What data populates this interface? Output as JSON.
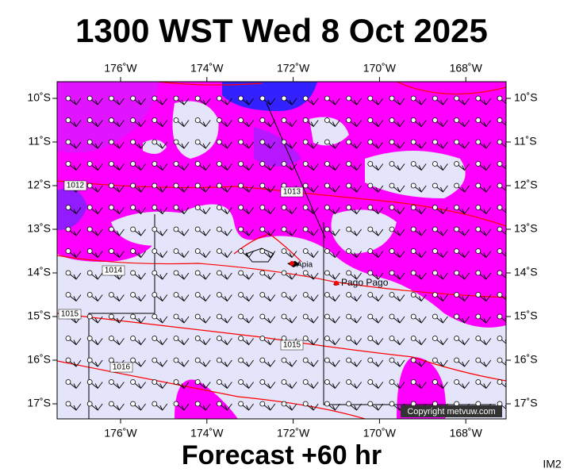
{
  "header": {
    "title": "1300 WST Wed 8 Oct 2025"
  },
  "footer": {
    "forecast": "Forecast +60 hr",
    "image_id": "IM2"
  },
  "map": {
    "lon_ticks": [
      {
        "value": 176,
        "label": "176˚W"
      },
      {
        "value": 174,
        "label": "174˚W"
      },
      {
        "value": 172,
        "label": "172˚W"
      },
      {
        "value": 170,
        "label": "170˚W"
      },
      {
        "value": 168,
        "label": "168˚W"
      }
    ],
    "lat_ticks": [
      {
        "value": 10,
        "label": "10˚S"
      },
      {
        "value": 11,
        "label": "11˚S"
      },
      {
        "value": 12,
        "label": "12˚S"
      },
      {
        "value": 13,
        "label": "13˚S"
      },
      {
        "value": 14,
        "label": "14˚S"
      },
      {
        "value": 15,
        "label": "15˚S"
      },
      {
        "value": 16,
        "label": "16˚S"
      },
      {
        "value": 17,
        "label": "17˚S"
      }
    ],
    "isobar_labels": [
      "1012",
      "1013",
      "1014",
      "1015",
      "1015",
      "1016"
    ],
    "places": [
      "Apia",
      "Pago Pago"
    ],
    "copyright": "Copyright metvuw.com"
  }
}
